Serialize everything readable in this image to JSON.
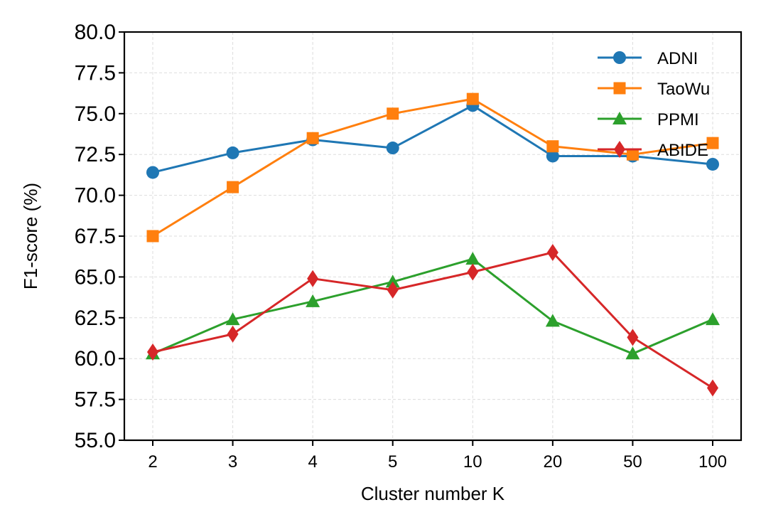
{
  "chart_data": {
    "type": "line",
    "title": "",
    "xlabel": "Cluster number K",
    "ylabel": "F1-score (%)",
    "categories": [
      "2",
      "3",
      "4",
      "5",
      "10",
      "20",
      "50",
      "100"
    ],
    "ylim": [
      55.0,
      80.0
    ],
    "yticks": [
      "55.0",
      "57.5",
      "60.0",
      "62.5",
      "65.0",
      "67.5",
      "70.0",
      "72.5",
      "75.0",
      "77.5",
      "80.0"
    ],
    "grid": true,
    "legend_position": "top-right",
    "series": [
      {
        "name": "ADNI",
        "color": "#1f77b4",
        "marker": "circle",
        "values": [
          71.4,
          72.6,
          73.4,
          72.9,
          75.5,
          72.4,
          72.4,
          71.9
        ]
      },
      {
        "name": "TaoWu",
        "color": "#ff7f0e",
        "marker": "square",
        "values": [
          67.5,
          70.5,
          73.5,
          75.0,
          75.9,
          73.0,
          72.5,
          73.2
        ]
      },
      {
        "name": "PPMI",
        "color": "#2ca02c",
        "marker": "triangle",
        "values": [
          60.3,
          62.4,
          63.5,
          64.7,
          66.1,
          62.3,
          60.3,
          62.4
        ]
      },
      {
        "name": "ABIDE",
        "color": "#d62728",
        "marker": "diamond",
        "values": [
          60.4,
          61.5,
          64.9,
          64.2,
          65.3,
          66.5,
          61.3,
          58.2
        ]
      }
    ]
  }
}
